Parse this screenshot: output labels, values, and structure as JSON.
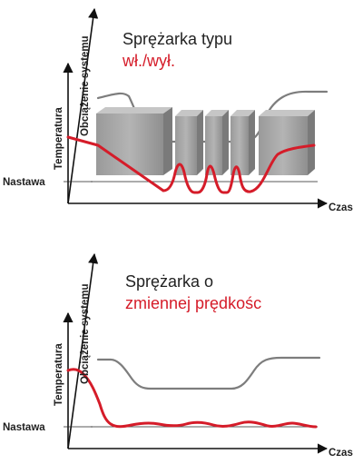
{
  "top": {
    "title_line1": "Sprężarka typu",
    "title_line2": "wł./wył.",
    "axis_load": "Obciążenie systemu",
    "axis_temperature": "Temperatura",
    "setpoint": "Nastawa",
    "axis_time": "Czas"
  },
  "bottom": {
    "title_line1": "Sprężarka o",
    "title_line2": "zmiennej prędkośc",
    "axis_load": "Obciążenie systemu",
    "axis_temperature": "Temperatura",
    "setpoint": "Nastawa",
    "axis_time": "Czas"
  },
  "colors": {
    "temperature_line": "#d51c29",
    "load_line": "#7d7d7d",
    "compressor_block": "#a6a6a6",
    "title_accent": "#d51c29"
  }
}
